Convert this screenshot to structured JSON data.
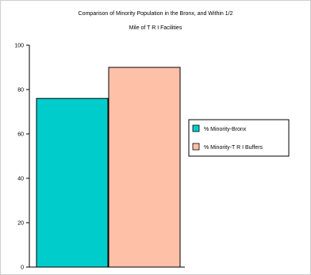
{
  "chart_data": {
    "type": "bar",
    "title": "Comparison of Minority Population in the Bronx, and Within 1/2 Mile of TRI Facilities",
    "title_lines": [
      "Comparison of Minority Population in the Bronx, and Within 1/2",
      "Mile of T R I Facilities"
    ],
    "xlabel": "",
    "ylabel": "",
    "ylim": [
      0,
      100
    ],
    "yticks": [
      0,
      20,
      40,
      60,
      80,
      100
    ],
    "grid": false,
    "legend_position": "right",
    "series": [
      {
        "name": "% Minority-Bronx",
        "value": 76,
        "color": "#00CCCC"
      },
      {
        "name": "% Minority-T R I Buffers",
        "value": 90,
        "color": "#FFC0A8"
      }
    ]
  }
}
